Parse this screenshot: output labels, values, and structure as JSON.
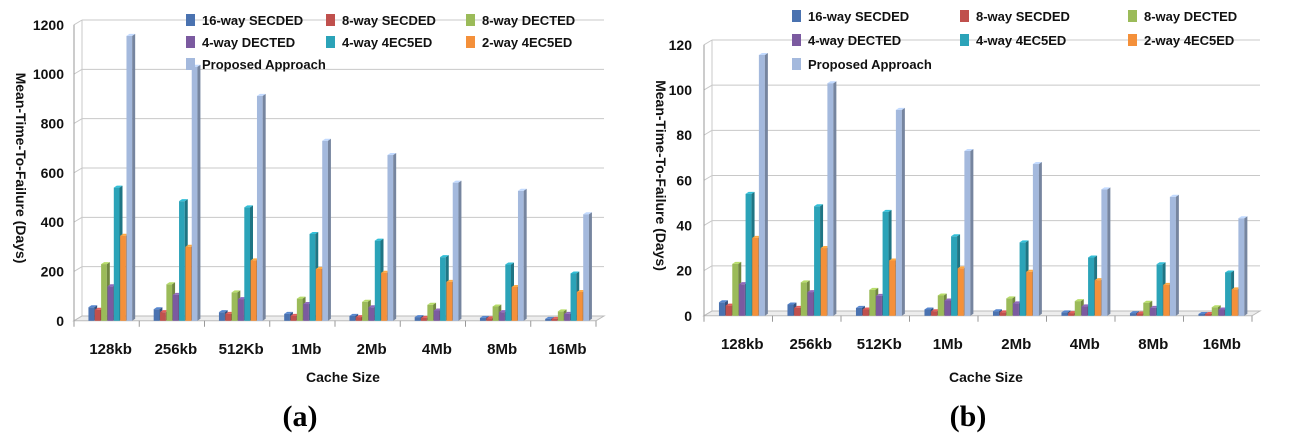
{
  "chart_data": [
    {
      "type": "bar",
      "panel_label": "(a)",
      "panel_label_parts": [
        "(",
        "a",
        ")"
      ],
      "xlabel": "Cache Size",
      "ylabel": "Mean-Time-To-Failure (Days)",
      "ylim": [
        0,
        1200
      ],
      "yticks": [
        0,
        200,
        400,
        600,
        800,
        1000,
        1200
      ],
      "grid": true,
      "legend_position": "top",
      "categories": [
        "128kb",
        "256kb",
        "512Kb",
        "1Mb",
        "2Mb",
        "4Mb",
        "8Mb",
        "16Mb"
      ],
      "series": [
        {
          "name": "16-way SECDED",
          "color": "#4a72b0",
          "values": [
            55,
            47,
            35,
            28,
            20,
            15,
            12,
            8
          ]
        },
        {
          "name": "8-way SECDED",
          "color": "#c0504d",
          "values": [
            45,
            35,
            28,
            20,
            15,
            12,
            10,
            8
          ]
        },
        {
          "name": "8-way DECTED",
          "color": "#9bbb59",
          "values": [
            230,
            148,
            115,
            90,
            77,
            65,
            58,
            38
          ]
        },
        {
          "name": "4-way DECTED",
          "color": "#7b5aa0",
          "values": [
            140,
            105,
            88,
            68,
            55,
            42,
            35,
            28
          ]
        },
        {
          "name": "4-way 4EC5ED",
          "color": "#2ba3b8",
          "values": [
            540,
            485,
            460,
            352,
            325,
            258,
            228,
            192
          ]
        },
        {
          "name": "2-way 4EC5ED",
          "color": "#f4903a",
          "values": [
            345,
            300,
            245,
            210,
            195,
            158,
            137,
            117
          ]
        },
        {
          "name": "Proposed Approach",
          "color": "#a4b9dd",
          "values": [
            1155,
            1030,
            912,
            730,
            672,
            560,
            527,
            432
          ]
        }
      ]
    },
    {
      "type": "bar",
      "panel_label": "(b)",
      "panel_label_parts": [
        "(",
        "b",
        ")"
      ],
      "xlabel": "Cache Size",
      "ylabel": "Mean-Time-To-Failure (Days)",
      "ylim": [
        0,
        120
      ],
      "yticks": [
        0,
        20,
        40,
        60,
        80,
        100,
        120
      ],
      "grid": true,
      "legend_position": "top",
      "categories": [
        "128kb",
        "256kb",
        "512Kb",
        "1Mb",
        "2Mb",
        "4Mb",
        "8Mb",
        "16Mb"
      ],
      "series": [
        {
          "name": "16-way SECDED",
          "color": "#4a72b0",
          "values": [
            6,
            5,
            3.5,
            2.8,
            2,
            1.5,
            1.2,
            0.8
          ]
        },
        {
          "name": "8-way SECDED",
          "color": "#c0504d",
          "values": [
            4.5,
            3.5,
            2.8,
            2,
            1.5,
            1.2,
            1,
            0.8
          ]
        },
        {
          "name": "8-way DECTED",
          "color": "#9bbb59",
          "values": [
            23,
            14.8,
            11.5,
            9,
            7.7,
            6.5,
            5.8,
            3.8
          ]
        },
        {
          "name": "4-way DECTED",
          "color": "#7b5aa0",
          "values": [
            14,
            10.5,
            8.8,
            6.8,
            5.5,
            4.2,
            3.5,
            2.8
          ]
        },
        {
          "name": "4-way 4EC5ED",
          "color": "#2ba3b8",
          "values": [
            54,
            48.5,
            46,
            35.2,
            32.5,
            25.8,
            22.8,
            19.2
          ]
        },
        {
          "name": "2-way 4EC5ED",
          "color": "#f4903a",
          "values": [
            34.5,
            30,
            24.5,
            21,
            19.5,
            15.8,
            13.7,
            11.7
          ]
        },
        {
          "name": "Proposed Approach",
          "color": "#a4b9dd",
          "values": [
            115.5,
            103,
            91.2,
            73,
            67.2,
            56,
            52.7,
            43.2
          ]
        }
      ]
    }
  ]
}
